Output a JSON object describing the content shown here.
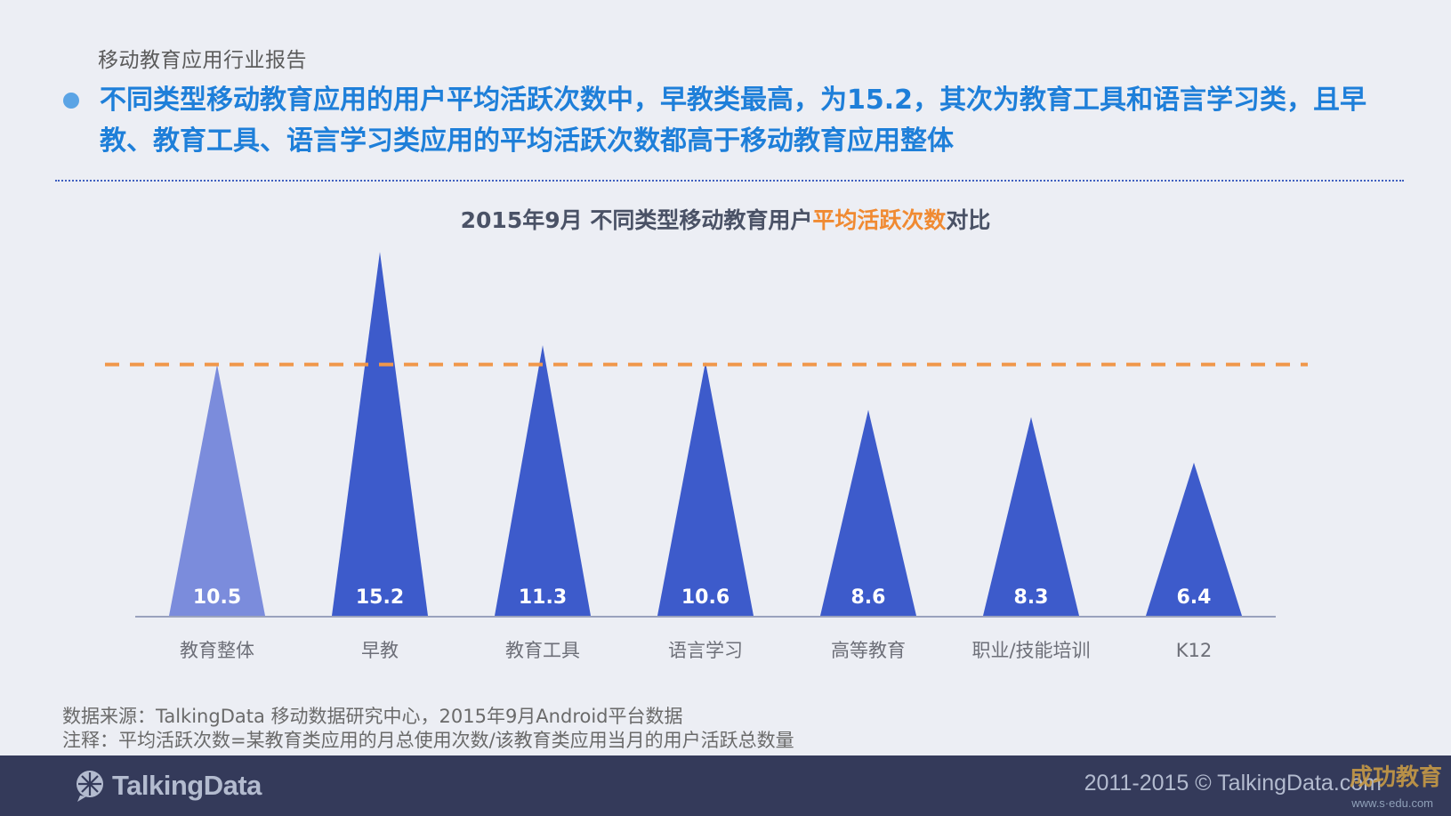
{
  "header": {
    "report_label": "移动教育应用行业报告",
    "headline": "不同类型移动教育应用的用户平均活跃次数中，早教类最高，为15.2，其次为教育工具和语言学习类，且早教、教育工具、语言学习类应用的平均活跃次数都高于移动教育应用整体"
  },
  "chart_data": {
    "type": "bar",
    "title_parts": [
      "2015年9月  不同类型移动教育用户",
      "平均活跃次数",
      "对比"
    ],
    "categories": [
      "教育整体",
      "早教",
      "教育工具",
      "语言学习",
      "高等教育",
      "职业/技能培训",
      "K12"
    ],
    "values": [
      10.5,
      15.2,
      11.3,
      10.6,
      8.6,
      8.3,
      6.4
    ],
    "reference_line": 10.5,
    "ylim": [
      0,
      15.8
    ],
    "colors": {
      "overall": "#7b8cdc",
      "bars": "#3d5bcb",
      "reference_line": "#f0974a",
      "value_label": "#ffffff",
      "axis": "#9aa2bd",
      "category_label": "#6d6f78"
    }
  },
  "source": {
    "line1": "数据来源：TalkingData 移动数据研究中心，2015年9月Android平台数据",
    "line2": "注释：平均活跃次数=某教育类应用的月总使用次数/该教育类应用当月的用户活跃总数量"
  },
  "footer": {
    "brand": "TalkingData",
    "copyright": "2011-2015 © TalkingData.com",
    "watermark_main": "成功教育",
    "watermark_sub": "www.s·edu.com"
  }
}
